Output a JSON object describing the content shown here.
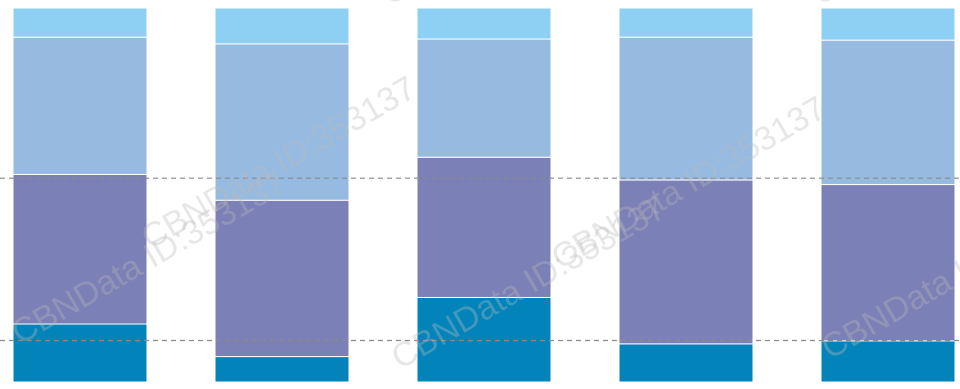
{
  "chart_data": {
    "type": "bar",
    "stacked": true,
    "orientation": "vertical",
    "categories": [
      "",
      "",
      "",
      "",
      ""
    ],
    "ylim": [
      0,
      100
    ],
    "grid": false,
    "reference_lines": [
      11.1,
      54.5
    ],
    "series": [
      {
        "values": [
          15.5,
          6.8,
          22.6,
          10.2,
          11.0
        ],
        "color": "#0284BA"
      },
      {
        "values": [
          40.0,
          41.8,
          37.5,
          43.8,
          41.8
        ],
        "color": "#7B80B6"
      },
      {
        "values": [
          36.7,
          41.8,
          31.6,
          38.2,
          38.6
        ],
        "color": "#97BAE0"
      },
      {
        "values": [
          7.8,
          9.6,
          8.3,
          7.8,
          8.6
        ],
        "color": "#8DD0F3"
      }
    ]
  },
  "watermark": {
    "text": "CBNData ID:353137",
    "color": "#bdbdbd"
  }
}
